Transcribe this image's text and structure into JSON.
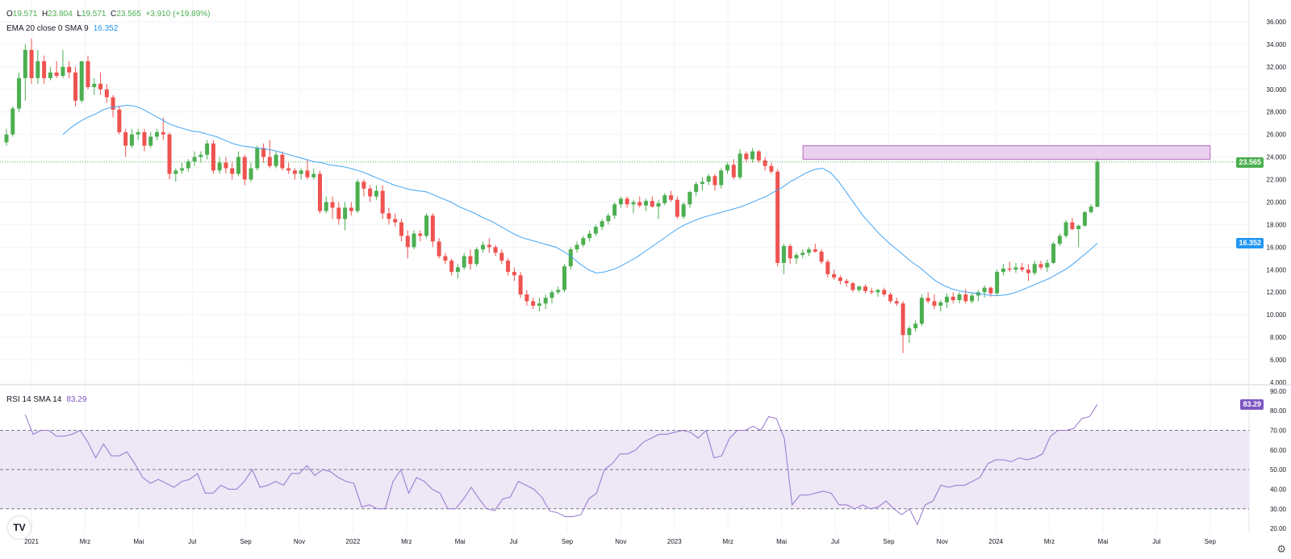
{
  "header": {
    "o_label": "O",
    "o_value": "19.571",
    "h_label": "H",
    "h_value": "23.804",
    "l_label": "L",
    "l_value": "19.571",
    "c_label": "C",
    "c_value": "23.565",
    "change": "+3.910 (+19.89%)"
  },
  "ema_legend": {
    "label": "EMA 20 close 0 SMA 9",
    "value": "16.352"
  },
  "rsi_legend": {
    "label": "RSI 14 SMA 14",
    "value": "83.29"
  },
  "price_tag": "23.565",
  "ema_tag": "16.352",
  "rsi_tag": "83.29",
  "logo_text": "TV",
  "colors": {
    "up": "#4caf50",
    "down": "#ef5350",
    "ema": "#42a5f5",
    "rsi": "#9575cd",
    "zone": "#e1bee7",
    "zone_border": "#ba68c8",
    "rsi_band": "#ede7f6",
    "price_tag_bg": "#4caf50",
    "ema_tag_bg": "#2196f3",
    "rsi_tag_bg": "#7e57c2"
  },
  "chart_data": {
    "type": "candlestick",
    "x_labels": [
      "2021",
      "Mrz",
      "Mai",
      "Jul",
      "Sep",
      "Nov",
      "2022",
      "Mrz",
      "Mai",
      "Jul",
      "Sep",
      "Nov",
      "2023",
      "Mrz",
      "Mai",
      "Jul",
      "Sep",
      "Nov",
      "2024",
      "Mrz",
      "Mai",
      "Jul",
      "Sep"
    ],
    "price_ticks": [
      "4.000",
      "6.000",
      "8.000",
      "10.000",
      "12.000",
      "14.000",
      "16.000",
      "18.000",
      "20.000",
      "22.000",
      "24.000",
      "26.000",
      "28.000",
      "30.000",
      "32.000",
      "34.000",
      "36.000"
    ],
    "ylim": [
      4,
      36.5
    ],
    "zone": {
      "y_low": 23.8,
      "y_high": 25.0,
      "x_start_month": 28.8,
      "x_end_month": 44.0
    },
    "last_close": 23.565,
    "ohlc": [
      [
        25.3,
        26.5,
        25.0,
        26.0
      ],
      [
        26.0,
        28.5,
        25.8,
        28.3
      ],
      [
        28.3,
        31.5,
        28.0,
        31.0
      ],
      [
        31.0,
        34.0,
        29.0,
        33.5
      ],
      [
        33.5,
        34.5,
        30.5,
        31.0
      ],
      [
        31.0,
        33.5,
        30.5,
        32.5
      ],
      [
        32.5,
        33.0,
        30.5,
        31.0
      ],
      [
        31.0,
        32.0,
        30.8,
        31.5
      ],
      [
        31.5,
        32.5,
        31.0,
        31.2
      ],
      [
        31.2,
        33.5,
        31.0,
        32.0
      ],
      [
        32.0,
        32.5,
        31.0,
        31.5
      ],
      [
        31.5,
        32.0,
        28.5,
        29.0
      ],
      [
        29.0,
        32.5,
        28.8,
        32.5
      ],
      [
        32.5,
        33.0,
        30.0,
        30.2
      ],
      [
        30.2,
        31.0,
        29.5,
        30.5
      ],
      [
        30.5,
        31.5,
        29.5,
        30.0
      ],
      [
        30.0,
        30.5,
        28.8,
        29.3
      ],
      [
        29.3,
        29.5,
        27.5,
        28.2
      ],
      [
        28.2,
        28.5,
        26.0,
        26.2
      ],
      [
        26.2,
        26.5,
        24.0,
        25.0
      ],
      [
        25.0,
        26.5,
        24.8,
        26.0
      ],
      [
        26.0,
        26.5,
        25.5,
        26.2
      ],
      [
        26.2,
        26.5,
        24.5,
        25.0
      ],
      [
        25.0,
        26.2,
        24.8,
        25.8
      ],
      [
        25.8,
        26.5,
        25.5,
        26.2
      ],
      [
        26.2,
        27.5,
        25.5,
        26.0
      ],
      [
        26.0,
        26.2,
        22.0,
        22.5
      ],
      [
        22.5,
        23.0,
        21.8,
        22.8
      ],
      [
        22.8,
        23.5,
        22.5,
        23.0
      ],
      [
        23.0,
        23.8,
        22.7,
        23.6
      ],
      [
        23.6,
        24.5,
        23.2,
        24.0
      ],
      [
        24.0,
        24.5,
        23.5,
        24.2
      ],
      [
        24.2,
        25.5,
        23.8,
        25.2
      ],
      [
        25.2,
        25.5,
        22.5,
        22.8
      ],
      [
        22.8,
        24.0,
        22.5,
        23.5
      ],
      [
        23.5,
        24.0,
        22.5,
        23.0
      ],
      [
        23.0,
        23.5,
        22.0,
        22.5
      ],
      [
        22.5,
        24.5,
        22.3,
        24.0
      ],
      [
        24.0,
        24.2,
        21.5,
        22.0
      ],
      [
        22.0,
        23.5,
        21.8,
        23.0
      ],
      [
        23.0,
        25.0,
        22.8,
        24.8
      ],
      [
        24.8,
        25.2,
        23.5,
        24.0
      ],
      [
        24.0,
        25.5,
        23.0,
        23.2
      ],
      [
        23.2,
        24.5,
        23.0,
        24.2
      ],
      [
        24.2,
        24.5,
        22.8,
        23.0
      ],
      [
        23.0,
        23.5,
        22.5,
        22.8
      ],
      [
        22.8,
        23.0,
        22.0,
        22.5
      ],
      [
        22.5,
        23.0,
        22.0,
        22.8
      ],
      [
        22.8,
        23.8,
        22.0,
        22.2
      ],
      [
        22.2,
        23.0,
        22.0,
        22.5
      ],
      [
        22.5,
        22.8,
        19.0,
        19.2
      ],
      [
        19.2,
        20.5,
        19.0,
        20.0
      ],
      [
        20.0,
        20.5,
        18.5,
        19.5
      ],
      [
        19.5,
        20.0,
        18.0,
        18.5
      ],
      [
        18.5,
        20.0,
        17.5,
        19.5
      ],
      [
        19.5,
        20.0,
        18.8,
        19.2
      ],
      [
        19.2,
        22.0,
        19.0,
        21.8
      ],
      [
        21.8,
        22.0,
        20.5,
        21.2
      ],
      [
        21.2,
        21.5,
        20.0,
        20.5
      ],
      [
        20.5,
        21.5,
        20.2,
        21.0
      ],
      [
        21.0,
        21.5,
        18.5,
        19.0
      ],
      [
        19.0,
        19.5,
        18.0,
        18.5
      ],
      [
        18.5,
        19.0,
        17.8,
        18.2
      ],
      [
        18.2,
        18.5,
        16.5,
        17.0
      ],
      [
        17.0,
        17.5,
        15.0,
        16.0
      ],
      [
        16.0,
        17.5,
        15.8,
        17.2
      ],
      [
        17.2,
        17.5,
        16.5,
        17.0
      ],
      [
        17.0,
        19.0,
        16.8,
        18.8
      ],
      [
        18.8,
        19.0,
        16.0,
        16.5
      ],
      [
        16.5,
        16.8,
        15.0,
        15.2
      ],
      [
        15.2,
        15.5,
        14.5,
        14.8
      ],
      [
        14.8,
        15.0,
        13.5,
        13.8
      ],
      [
        13.8,
        14.5,
        13.2,
        14.2
      ],
      [
        14.2,
        15.5,
        14.0,
        15.2
      ],
      [
        15.2,
        15.8,
        14.0,
        14.5
      ],
      [
        14.5,
        16.0,
        14.3,
        15.8
      ],
      [
        15.8,
        16.5,
        15.5,
        16.2
      ],
      [
        16.2,
        16.8,
        15.5,
        16.0
      ],
      [
        16.0,
        16.2,
        15.2,
        15.5
      ],
      [
        15.5,
        15.8,
        14.5,
        14.8
      ],
      [
        14.8,
        15.0,
        13.5,
        13.8
      ],
      [
        13.8,
        14.2,
        13.0,
        13.5
      ],
      [
        13.5,
        13.8,
        11.5,
        11.8
      ],
      [
        11.8,
        12.2,
        10.8,
        11.2
      ],
      [
        11.2,
        11.5,
        10.5,
        10.8
      ],
      [
        10.8,
        11.5,
        10.3,
        11.0
      ],
      [
        11.0,
        11.8,
        10.5,
        11.5
      ],
      [
        11.5,
        12.2,
        11.0,
        12.0
      ],
      [
        12.0,
        12.5,
        11.8,
        12.2
      ],
      [
        12.2,
        14.5,
        12.0,
        14.3
      ],
      [
        14.3,
        16.0,
        14.0,
        15.8
      ],
      [
        15.8,
        16.5,
        15.5,
        16.2
      ],
      [
        16.2,
        17.0,
        16.0,
        16.8
      ],
      [
        16.8,
        17.5,
        16.5,
        17.2
      ],
      [
        17.2,
        18.0,
        17.0,
        17.8
      ],
      [
        17.8,
        18.5,
        17.5,
        18.3
      ],
      [
        18.3,
        19.0,
        18.0,
        18.8
      ],
      [
        18.8,
        20.0,
        18.5,
        19.8
      ],
      [
        19.8,
        20.5,
        19.5,
        20.3
      ],
      [
        20.3,
        20.5,
        19.5,
        19.8
      ],
      [
        19.8,
        20.2,
        19.0,
        20.0
      ],
      [
        20.0,
        20.5,
        19.5,
        19.7
      ],
      [
        19.7,
        20.3,
        19.2,
        20.1
      ],
      [
        20.1,
        20.5,
        19.5,
        19.6
      ],
      [
        19.6,
        20.2,
        18.5,
        19.9
      ],
      [
        19.9,
        20.8,
        19.7,
        20.6
      ],
      [
        20.6,
        21.0,
        20.0,
        20.2
      ],
      [
        20.2,
        20.5,
        18.5,
        18.7
      ],
      [
        18.7,
        20.0,
        18.5,
        19.8
      ],
      [
        19.8,
        21.0,
        19.5,
        20.9
      ],
      [
        20.9,
        21.8,
        20.5,
        21.6
      ],
      [
        21.6,
        22.2,
        21.0,
        21.8
      ],
      [
        21.8,
        22.5,
        21.5,
        22.3
      ],
      [
        22.3,
        22.5,
        21.0,
        21.5
      ],
      [
        21.5,
        23.0,
        21.2,
        22.8
      ],
      [
        22.8,
        23.5,
        22.5,
        23.3
      ],
      [
        23.3,
        23.8,
        22.0,
        22.2
      ],
      [
        22.2,
        24.7,
        22.0,
        24.3
      ],
      [
        24.3,
        24.5,
        23.5,
        23.8
      ],
      [
        23.8,
        24.8,
        23.5,
        24.5
      ],
      [
        24.5,
        24.6,
        23.5,
        23.7
      ],
      [
        23.7,
        24.0,
        22.8,
        23.2
      ],
      [
        23.2,
        23.5,
        22.5,
        22.7
      ],
      [
        22.7,
        22.9,
        14.3,
        14.6
      ],
      [
        14.6,
        16.3,
        13.6,
        16.1
      ],
      [
        16.1,
        16.3,
        14.5,
        15.0
      ],
      [
        15.0,
        15.5,
        14.5,
        15.3
      ],
      [
        15.3,
        15.8,
        15.0,
        15.5
      ],
      [
        15.5,
        16.0,
        15.2,
        15.8
      ],
      [
        15.8,
        16.3,
        15.5,
        15.6
      ],
      [
        15.6,
        15.8,
        14.5,
        14.7
      ],
      [
        14.7,
        14.9,
        13.3,
        13.6
      ],
      [
        13.6,
        14.0,
        13.1,
        13.3
      ],
      [
        13.3,
        13.5,
        12.7,
        13.0
      ],
      [
        13.0,
        13.2,
        12.5,
        12.8
      ],
      [
        12.8,
        12.9,
        12.0,
        12.2
      ],
      [
        12.2,
        12.6,
        12.0,
        12.5
      ],
      [
        12.5,
        12.7,
        11.9,
        12.1
      ],
      [
        12.1,
        12.4,
        11.8,
        12.0
      ],
      [
        12.0,
        12.3,
        11.6,
        12.2
      ],
      [
        12.2,
        12.4,
        11.6,
        11.8
      ],
      [
        11.8,
        12.0,
        11.0,
        11.2
      ],
      [
        11.2,
        11.5,
        10.8,
        11.0
      ],
      [
        11.0,
        11.2,
        6.6,
        8.2
      ],
      [
        8.2,
        9.0,
        7.5,
        8.8
      ],
      [
        8.8,
        9.5,
        8.5,
        9.2
      ],
      [
        9.2,
        11.8,
        9.0,
        11.5
      ],
      [
        11.5,
        12.0,
        11.0,
        11.2
      ],
      [
        11.2,
        11.8,
        10.5,
        10.8
      ],
      [
        10.8,
        11.3,
        10.3,
        11.1
      ],
      [
        11.1,
        11.9,
        10.6,
        11.6
      ],
      [
        11.6,
        12.0,
        11.0,
        11.3
      ],
      [
        11.3,
        12.0,
        11.0,
        11.8
      ],
      [
        11.8,
        12.3,
        11.0,
        11.2
      ],
      [
        11.2,
        11.9,
        11.0,
        11.7
      ],
      [
        11.7,
        12.2,
        11.2,
        12.0
      ],
      [
        12.0,
        12.6,
        11.5,
        12.4
      ],
      [
        12.4,
        12.5,
        11.6,
        11.9
      ],
      [
        11.9,
        14.0,
        11.7,
        13.8
      ],
      [
        13.8,
        14.5,
        13.5,
        14.1
      ],
      [
        14.1,
        14.7,
        13.8,
        14.0
      ],
      [
        14.0,
        14.6,
        13.7,
        14.2
      ],
      [
        14.2,
        14.6,
        13.8,
        14.0
      ],
      [
        14.0,
        14.5,
        13.0,
        13.7
      ],
      [
        13.7,
        14.8,
        13.5,
        14.5
      ],
      [
        14.5,
        14.8,
        14.0,
        14.2
      ],
      [
        14.2,
        14.9,
        13.8,
        14.6
      ],
      [
        14.6,
        16.5,
        14.5,
        16.3
      ],
      [
        16.3,
        17.2,
        16.1,
        17.0
      ],
      [
        17.0,
        18.4,
        16.8,
        18.2
      ],
      [
        18.2,
        18.6,
        17.5,
        17.6
      ],
      [
        17.6,
        18.0,
        16.0,
        17.9
      ],
      [
        17.9,
        19.2,
        17.8,
        19.1
      ],
      [
        19.1,
        19.8,
        19.0,
        19.6
      ],
      [
        19.571,
        23.804,
        19.571,
        23.565
      ]
    ],
    "ema": [
      26.0,
      26.6,
      27.1,
      27.5,
      27.8,
      28.2,
      28.4,
      28.5,
      28.6,
      28.5,
      28.2,
      27.8,
      27.4,
      27.0,
      26.7,
      26.5,
      26.3,
      26.2,
      26.0,
      25.8,
      25.5,
      25.2,
      25.0,
      24.9,
      24.8,
      24.7,
      24.6,
      24.4,
      24.2,
      24.0,
      23.8,
      23.6,
      23.5,
      23.3,
      23.2,
      23.1,
      22.9,
      22.7,
      22.4,
      22.1,
      21.8,
      21.5,
      21.3,
      21.1,
      21.0,
      20.9,
      20.6,
      20.3,
      20.0,
      19.6,
      19.3,
      19.0,
      18.6,
      18.3,
      17.9,
      17.5,
      17.1,
      16.8,
      16.6,
      16.4,
      16.2,
      16.0,
      15.6,
      15.1,
      14.5,
      14.0,
      13.7,
      13.8,
      14.0,
      14.3,
      14.7,
      15.1,
      15.6,
      16.1,
      16.6,
      17.1,
      17.6,
      18.0,
      18.3,
      18.6,
      18.8,
      19.0,
      19.2,
      19.4,
      19.6,
      19.9,
      20.2,
      20.5,
      20.9,
      21.3,
      21.8,
      22.2,
      22.6,
      22.9,
      23.0,
      22.6,
      21.8,
      20.8,
      19.8,
      18.8,
      18.0,
      17.2,
      16.5,
      15.9,
      15.3,
      14.7,
      14.2,
      13.6,
      13.0,
      12.6,
      12.3,
      12.1,
      12.0,
      11.9,
      11.8,
      11.7,
      11.7,
      11.8,
      12.0,
      12.3,
      12.6,
      12.9,
      13.2,
      13.6,
      14.0,
      14.5,
      15.1,
      15.7,
      16.352
    ],
    "rsi": [
      78,
      68,
      70,
      70,
      67,
      67,
      68,
      70,
      64,
      56,
      63,
      57,
      57,
      59,
      53,
      46,
      43,
      45,
      43,
      41,
      44,
      45,
      48,
      38,
      38,
      42,
      40,
      40,
      44,
      50,
      41,
      42,
      44,
      42,
      48,
      48,
      52,
      47,
      50,
      49,
      46,
      44,
      43,
      31,
      32,
      30,
      30,
      44,
      50,
      38,
      46,
      44,
      40,
      38,
      30,
      30,
      35,
      41,
      35,
      30,
      29,
      35,
      36,
      44,
      42,
      40,
      36,
      29,
      28,
      26,
      26,
      27,
      35,
      38,
      50,
      53,
      58,
      58,
      60,
      64,
      66,
      68,
      68,
      69,
      70,
      69,
      66,
      70,
      56,
      57,
      66,
      70,
      70,
      72,
      70,
      77,
      76,
      66,
      32,
      37,
      37,
      38,
      39,
      38,
      32,
      32,
      30,
      32,
      30,
      31,
      34,
      30,
      27,
      30,
      22,
      32,
      34,
      42,
      41,
      42,
      42,
      44,
      46,
      53,
      55,
      55,
      54,
      56,
      55,
      56,
      58,
      67,
      70,
      70,
      71,
      76,
      77,
      83.29
    ],
    "rsi_ticks": [
      "20.00",
      "30.00",
      "40.00",
      "50.00",
      "60.00",
      "70.00",
      "80.00",
      "90.00"
    ],
    "rsi_levels": [
      30,
      50,
      70
    ],
    "rsi_ylim": [
      18,
      92
    ]
  }
}
